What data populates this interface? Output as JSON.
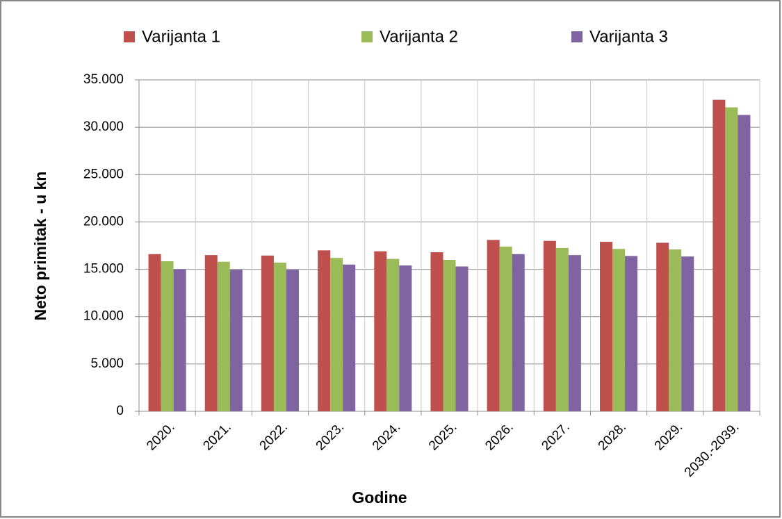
{
  "chart_data": {
    "type": "bar",
    "categories": [
      "2020.",
      "2021.",
      "2022.",
      "2023.",
      "2024.",
      "2025.",
      "2026.",
      "2027.",
      "2028.",
      "2029.",
      "2030.-2039."
    ],
    "series": [
      {
        "name": "Varijanta 1",
        "color": "#c0504d",
        "values": [
          16600,
          16500,
          16450,
          17000,
          16900,
          16800,
          18100,
          18000,
          17900,
          17800,
          32900
        ]
      },
      {
        "name": "Varijanta 2",
        "color": "#9bbb59",
        "values": [
          15850,
          15800,
          15700,
          16200,
          16100,
          16000,
          17400,
          17250,
          17150,
          17100,
          32100
        ]
      },
      {
        "name": "Varijanta 3",
        "color": "#8064a2",
        "values": [
          15000,
          14950,
          14950,
          15500,
          15400,
          15300,
          16600,
          16500,
          16400,
          16350,
          31300
        ]
      }
    ],
    "ylim": [
      0,
      35000
    ],
    "yticks": [
      0,
      {
        "value": 5000,
        "label": "5.000"
      },
      {
        "value": 10000,
        "label": "10.000"
      },
      {
        "value": 15000,
        "label": "15.000"
      },
      {
        "value": 20000,
        "label": "20.000"
      },
      {
        "value": 25000,
        "label": "25.000"
      },
      {
        "value": 30000,
        "label": "30.000"
      },
      {
        "value": 35000,
        "label": "35.000"
      }
    ],
    "y_label": "Neto primitak - u kn",
    "x_label": "Godine",
    "grid": true,
    "legend": "top"
  }
}
